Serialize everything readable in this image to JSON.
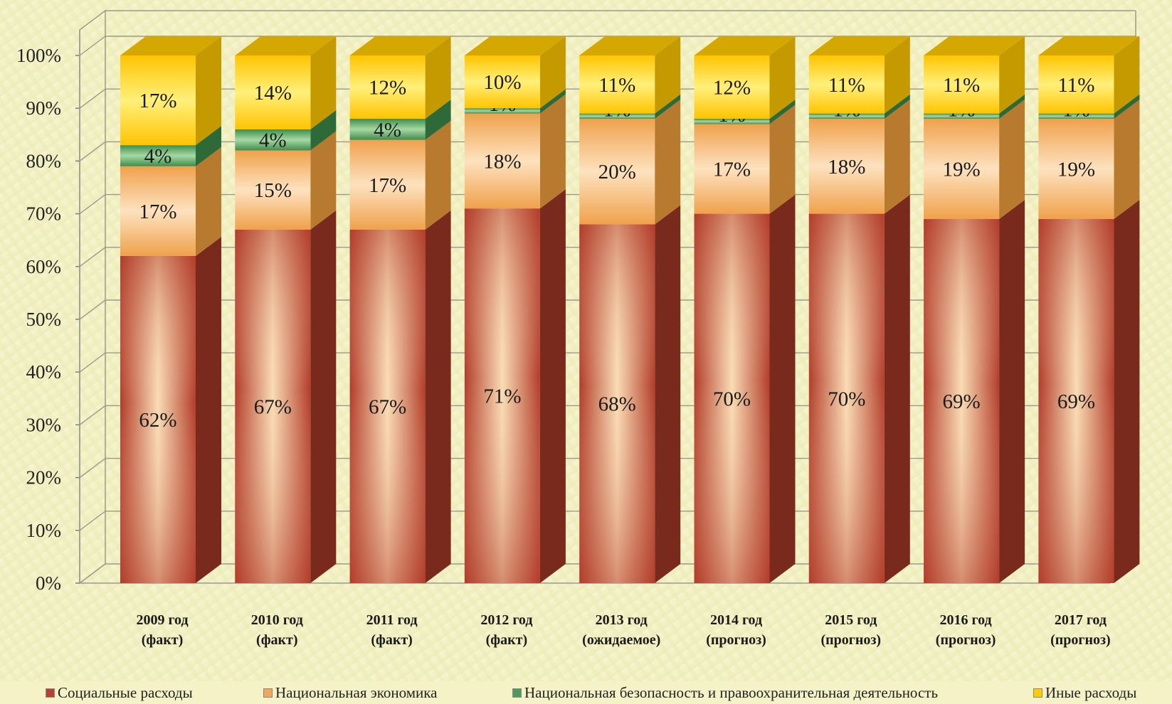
{
  "chart_data": {
    "type": "bar",
    "stacked": true,
    "percent_stacked": true,
    "three_d": true,
    "y_ticks": [
      "0%",
      "10%",
      "20%",
      "30%",
      "40%",
      "50%",
      "60%",
      "70%",
      "80%",
      "90%",
      "100%"
    ],
    "ylim": [
      0,
      100
    ],
    "categories": [
      [
        "2009 год",
        "(факт)"
      ],
      [
        "2010 год",
        "(факт)"
      ],
      [
        "2011 год",
        "(факт)"
      ],
      [
        "2012 год",
        "(факт)"
      ],
      [
        "2013 год",
        "(ожидаемое)"
      ],
      [
        "2014 год",
        "(прогноз)"
      ],
      [
        "2015 год",
        "(прогноз)"
      ],
      [
        "2016 год",
        "(прогноз)"
      ],
      [
        "2017 год",
        "(прогноз)"
      ]
    ],
    "series": [
      {
        "name": "Социальные расходы",
        "color": "#b8402f",
        "values": [
          62,
          67,
          67,
          71,
          68,
          70,
          70,
          69,
          69
        ],
        "labels": [
          "62%",
          "67%",
          "67%",
          "71%",
          "68%",
          "70%",
          "70%",
          "69%",
          "69%"
        ]
      },
      {
        "name": "Национальная экономика",
        "color": "#f2a85a",
        "values": [
          17,
          15,
          17,
          18,
          20,
          17,
          18,
          19,
          19
        ],
        "labels": [
          "17%",
          "15%",
          "17%",
          "18%",
          "20%",
          "17%",
          "18%",
          "19%",
          "19%"
        ]
      },
      {
        "name": "Национальная безопасность и правоохранительная деятельность",
        "color": "#4e9a5a",
        "values": [
          4,
          4,
          4,
          1,
          1,
          1,
          1,
          1,
          1
        ],
        "labels": [
          "4%",
          "4%",
          "4%",
          "1%",
          "1%",
          "1%",
          "1%",
          "1%",
          "1%"
        ]
      },
      {
        "name": "Иные расходы",
        "color": "#ffcc00",
        "values": [
          17,
          14,
          12,
          10,
          11,
          12,
          11,
          11,
          11
        ],
        "labels": [
          "17%",
          "14%",
          "12%",
          "10%",
          "11%",
          "12%",
          "11%",
          "11%",
          "11%"
        ]
      }
    ],
    "legend_position": "bottom",
    "grid": true
  }
}
